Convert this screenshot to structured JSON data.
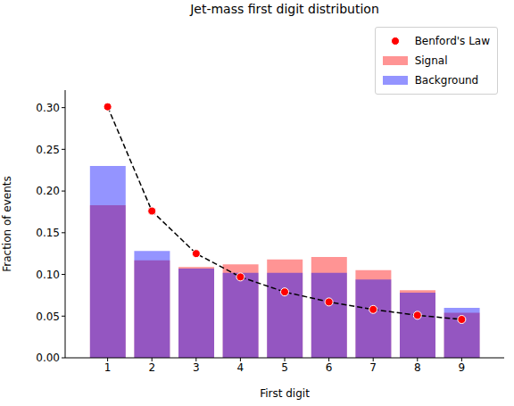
{
  "chart_data": {
    "type": "bar",
    "title": "Jet-mass first digit distribution",
    "x_label": "First digit",
    "y_label": "Fraction of events",
    "x": [
      1,
      2,
      3,
      4,
      5,
      6,
      7,
      8,
      9
    ],
    "xlim": [
      0.04,
      9.96
    ],
    "xticks": [
      1,
      2,
      3,
      4,
      5,
      6,
      7,
      8,
      9
    ],
    "ylim": [
      0,
      0.321
    ],
    "yticks": [
      {
        "value": 0,
        "label": "0.00"
      },
      {
        "value": 0.05,
        "label": "0.05"
      },
      {
        "value": 0.1,
        "label": "0.10"
      },
      {
        "value": 0.15,
        "label": "0.15"
      },
      {
        "value": 0.2,
        "label": "0.20"
      },
      {
        "value": 0.25,
        "label": "0.25"
      },
      {
        "value": 0.3,
        "label": "0.30"
      }
    ],
    "legend": "upper right",
    "series": [
      {
        "name": "Benford's Law",
        "type": "scatter",
        "marker": "circle",
        "line_style": "dashed",
        "color": "red",
        "values": [
          0.301,
          0.176,
          0.125,
          0.097,
          0.079,
          0.067,
          0.058,
          0.051,
          0.046
        ]
      },
      {
        "name": "Signal",
        "type": "bar",
        "color": "red",
        "values": [
          0.183,
          0.117,
          0.109,
          0.112,
          0.118,
          0.121,
          0.105,
          0.081,
          0.054
        ]
      },
      {
        "name": "Background",
        "type": "bar",
        "color": "blue",
        "values": [
          0.23,
          0.128,
          0.107,
          0.102,
          0.102,
          0.102,
          0.094,
          0.078,
          0.06
        ]
      }
    ]
  }
}
